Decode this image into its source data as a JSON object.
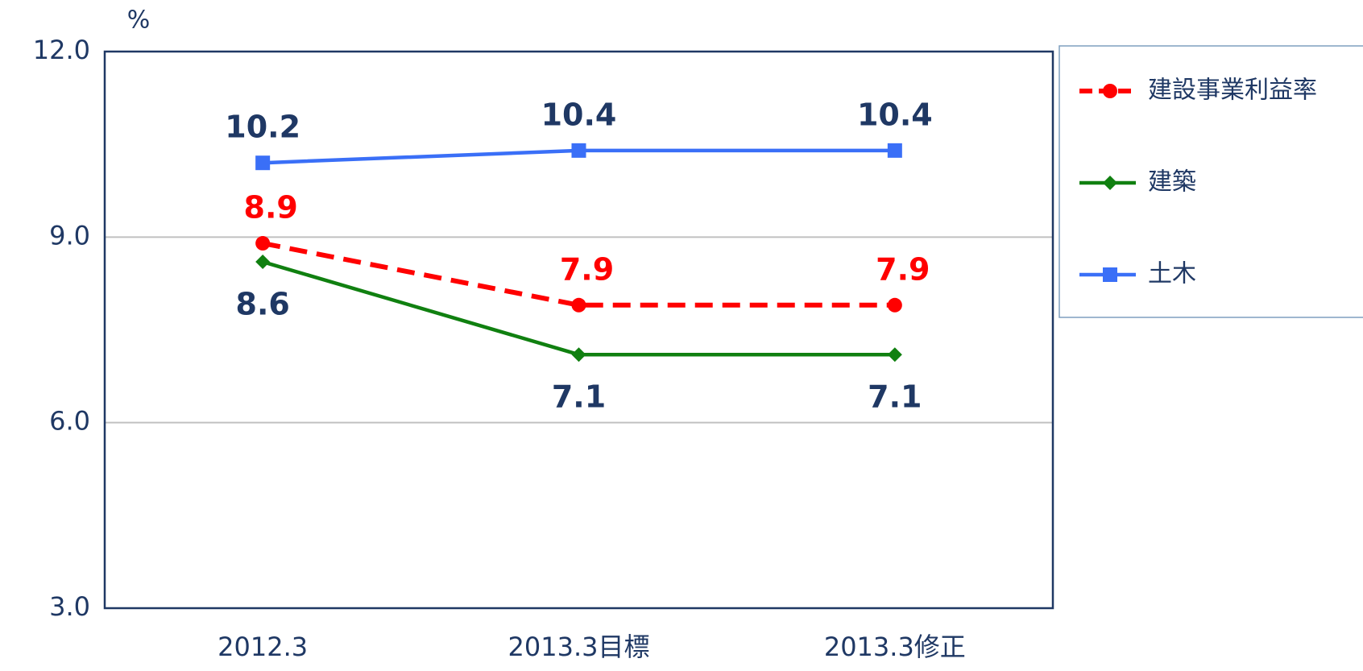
{
  "chart_data": {
    "type": "line",
    "y_label": "%",
    "categories": [
      "2012.3",
      "2013.3目標",
      "2013.3修正"
    ],
    "series": [
      {
        "name": "建設事業利益率",
        "color": "#ff0000",
        "marker": "circle",
        "dashed": true,
        "label_position": "above",
        "values": [
          8.9,
          7.9,
          7.9
        ]
      },
      {
        "name": "建築",
        "color": "#108010",
        "marker": "diamond",
        "dashed": false,
        "label_position": "below",
        "values": [
          8.6,
          7.1,
          7.1
        ]
      },
      {
        "name": "土木",
        "color": "#3a6ff7",
        "marker": "square",
        "dashed": false,
        "label_position": "above",
        "values": [
          10.2,
          10.4,
          10.4
        ]
      }
    ],
    "ylim": [
      3,
      12
    ],
    "yticks": [
      {
        "value": 3,
        "label": "3.0"
      },
      {
        "value": 6,
        "label": "6.0"
      },
      {
        "value": 9,
        "label": "9.0"
      },
      {
        "value": 12,
        "label": "12.0"
      }
    ],
    "grid": true,
    "legend": "right"
  }
}
